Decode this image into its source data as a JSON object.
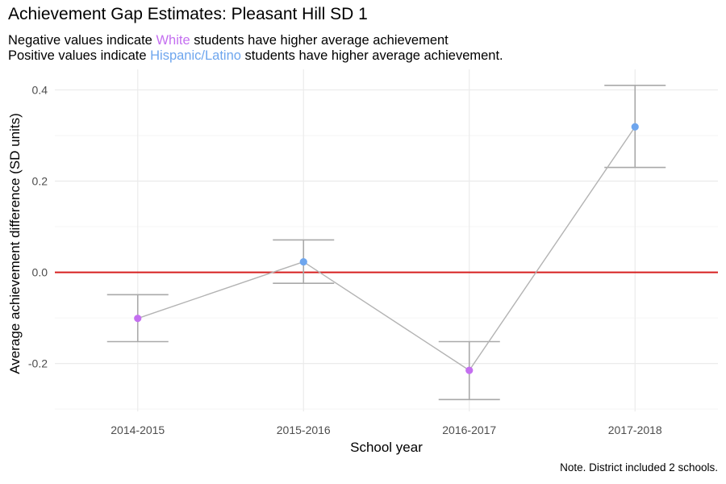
{
  "chart_data": {
    "type": "line",
    "title": "Achievement Gap Estimates: Pleasant Hill SD 1",
    "subtitle": {
      "line1": {
        "prefix": "Negative values indicate ",
        "highlight": "White",
        "suffix": " students have higher average achievement"
      },
      "line2": {
        "prefix": "Positive values indicate ",
        "highlight": "Hispanic/Latino",
        "suffix": " students have higher average achievement."
      }
    },
    "caption": "Note. District included 2 schools.",
    "xlabel": "School year",
    "ylabel": "Average achievement difference (SD units)",
    "categories": [
      "2014-2015",
      "2015-2016",
      "2016-2017",
      "2017-2018"
    ],
    "values": [
      -0.101,
      0.023,
      -0.215,
      0.319
    ],
    "error_low": [
      -0.152,
      -0.024,
      -0.279,
      0.23
    ],
    "error_high": [
      -0.049,
      0.071,
      -0.152,
      0.41
    ],
    "ylim": [
      -0.305,
      0.445
    ],
    "yticks": [
      -0.2,
      0.0,
      0.2,
      0.4
    ],
    "ytick_labels": [
      "-0.2",
      "0.0",
      "0.2",
      "0.4"
    ],
    "reference_line": 0,
    "grid": true,
    "colors": {
      "white_group": "#c46ff0",
      "hispanic_group": "#6ea6ee",
      "line": "#b3b3b3",
      "errorbar": "#a9a9a9",
      "reference": "#d61f1f",
      "grid_major": "#ebebeb",
      "grid_minor": "#f5f5f5"
    }
  }
}
